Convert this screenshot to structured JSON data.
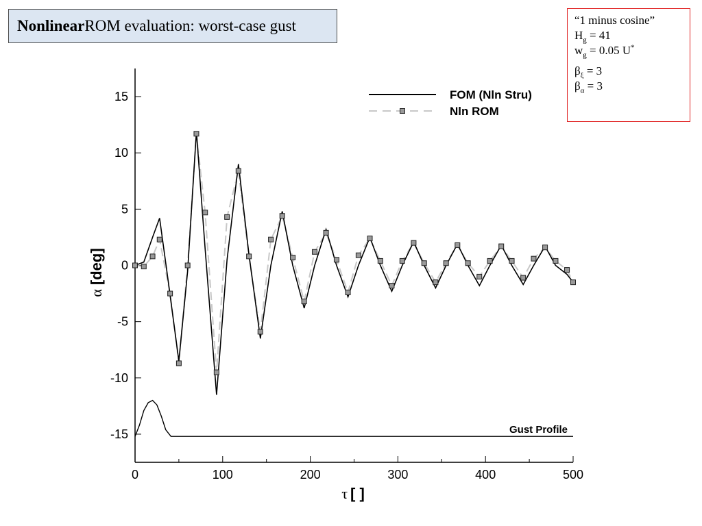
{
  "header": {
    "title_bold": "Nonlinear",
    "title_rest": " ROM evaluation: worst-case gust"
  },
  "params": {
    "line1": "“1 minus cosine”",
    "hg_label": "H",
    "hg_sub": "g",
    "hg_value": " = 41",
    "wg_label": "w",
    "wg_sub": "g",
    "wg_value": " = 0.05 U",
    "wg_sup": "*",
    "beta_xi_label": "β",
    "beta_xi_sub": "ξ",
    "beta_xi_value": " = 3",
    "beta_a_label": "β",
    "beta_a_sub": "α",
    "beta_a_value": " = 3"
  },
  "chart_data": {
    "type": "line",
    "xlabel_symbol": "τ",
    "xlabel_unit": "[ ]",
    "ylabel_symbol": "α",
    "ylabel_unit": "[deg]",
    "xlim": [
      0,
      500
    ],
    "ylim": [
      -17.5,
      17.5
    ],
    "xticks": [
      0,
      100,
      200,
      300,
      400,
      500
    ],
    "yticks": [
      15,
      10,
      5,
      0,
      -5,
      -10,
      -15
    ],
    "ytick_labels": [
      "15",
      "10",
      "5",
      "0",
      "-5",
      "-10",
      "-15"
    ],
    "grid": false,
    "legend_position": "top-right",
    "annotation": "Gust Profile",
    "series": [
      {
        "name": "FOM (Nln Stru)",
        "style": "solid",
        "color": "#000000",
        "x": [
          0,
          10,
          20,
          28,
          38,
          50,
          60,
          70,
          80,
          93,
          105,
          118,
          130,
          143,
          155,
          168,
          180,
          193,
          205,
          218,
          230,
          243,
          255,
          268,
          280,
          293,
          305,
          318,
          330,
          343,
          355,
          368,
          380,
          393,
          405,
          418,
          430,
          443,
          455,
          468,
          480,
          493,
          500
        ],
        "y": [
          0,
          0.3,
          2.5,
          4.2,
          -1.5,
          -8.5,
          -0.5,
          11.9,
          1.5,
          -11.5,
          0.5,
          9.0,
          1.0,
          -6.5,
          0.0,
          4.8,
          0.0,
          -3.8,
          0.0,
          3.2,
          0.0,
          -2.8,
          0.0,
          2.5,
          0.0,
          -2.3,
          0.0,
          2.1,
          0.0,
          -2.0,
          0.0,
          1.9,
          0.0,
          -1.8,
          0.0,
          1.8,
          0.0,
          -1.7,
          0.0,
          1.7,
          0.0,
          -0.8,
          -1.5
        ]
      },
      {
        "name": "Nln ROM",
        "style": "dashed-square-markers",
        "color": "#c8c8c8",
        "x": [
          0,
          10,
          20,
          28,
          40,
          50,
          60,
          70,
          80,
          93,
          105,
          118,
          130,
          143,
          155,
          168,
          180,
          193,
          205,
          218,
          230,
          243,
          255,
          268,
          280,
          293,
          305,
          318,
          330,
          343,
          355,
          368,
          380,
          393,
          405,
          418,
          430,
          443,
          455,
          468,
          480,
          493,
          500
        ],
        "y": [
          0,
          -0.1,
          0.8,
          2.3,
          -2.5,
          -8.7,
          0.0,
          11.7,
          4.7,
          -9.5,
          4.3,
          8.4,
          0.8,
          -5.9,
          2.3,
          4.4,
          0.7,
          -3.2,
          1.2,
          2.9,
          0.5,
          -2.4,
          0.9,
          2.4,
          0.4,
          -1.8,
          0.4,
          2.0,
          0.2,
          -1.5,
          0.2,
          1.8,
          0.2,
          -1.0,
          0.4,
          1.7,
          0.4,
          -1.1,
          0.6,
          1.6,
          0.4,
          -0.4,
          -1.5
        ]
      },
      {
        "name": "Gust Profile",
        "style": "solid",
        "color": "#000000",
        "x": [
          0,
          5,
          10,
          15,
          20,
          25,
          30,
          35,
          41,
          500
        ],
        "y": [
          -15.2,
          -14.2,
          -12.9,
          -12.2,
          -12.0,
          -12.4,
          -13.4,
          -14.6,
          -15.2,
          -15.2
        ]
      }
    ]
  }
}
